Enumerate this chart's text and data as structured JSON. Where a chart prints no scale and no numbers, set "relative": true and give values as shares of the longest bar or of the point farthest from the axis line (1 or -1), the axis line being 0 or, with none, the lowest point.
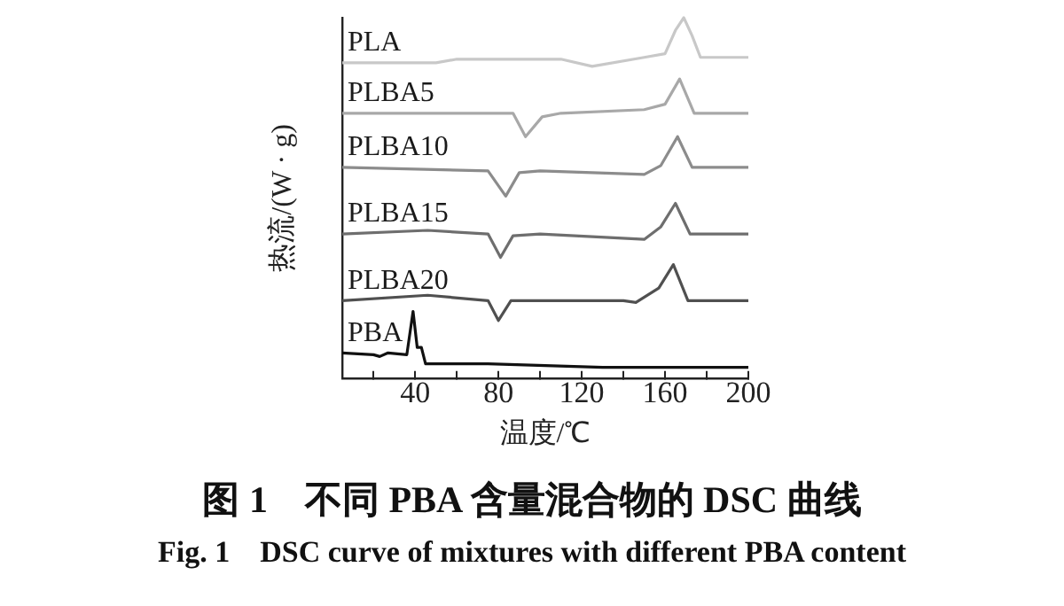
{
  "chart_data": {
    "type": "line",
    "relative": true,
    "title": "图 1　不同 PBA 含量混合物的 DSC 曲线",
    "subtitle": "Fig. 1　DSC curve of mixtures with different PBA content",
    "xlabel": "温度/℃",
    "ylabel": "热流/(W · g)",
    "xlim": [
      5,
      200
    ],
    "xticks": [
      {
        "value": 20,
        "label": null
      },
      40,
      {
        "value": 60,
        "label": null
      },
      80,
      {
        "value": 100,
        "label": null
      },
      120,
      {
        "value": 140,
        "label": null
      },
      160,
      {
        "value": 180,
        "label": null
      },
      200
    ],
    "grid": false,
    "legend": false,
    "marker": "none",
    "line_style": "solid",
    "series": [
      {
        "name": "PLA",
        "color": "#c8c8c8",
        "x": [
          5,
          50,
          60,
          110,
          125,
          150,
          160,
          165,
          169,
          173,
          177,
          200
        ],
        "values": [
          0.875,
          0.875,
          0.885,
          0.885,
          0.865,
          0.89,
          0.9,
          0.965,
          1.0,
          0.95,
          0.89,
          0.89
        ]
      },
      {
        "name": "PLBA5",
        "color": "#a8a8a8",
        "x": [
          5,
          87,
          93,
          101,
          110,
          150,
          160,
          167,
          174,
          200
        ],
        "values": [
          0.735,
          0.735,
          0.67,
          0.725,
          0.735,
          0.745,
          0.76,
          0.83,
          0.735,
          0.735
        ]
      },
      {
        "name": "PLBA10",
        "color": "#8c8c8c",
        "x": [
          5,
          75,
          83.5,
          90,
          100,
          150,
          158,
          166,
          173,
          200
        ],
        "values": [
          0.585,
          0.575,
          0.505,
          0.57,
          0.575,
          0.565,
          0.59,
          0.67,
          0.585,
          0.585
        ]
      },
      {
        "name": "PLBA15",
        "color": "#6e6e6e",
        "x": [
          5,
          46,
          75,
          81,
          87,
          100,
          150,
          158,
          165,
          172,
          200
        ],
        "values": [
          0.4,
          0.41,
          0.4,
          0.335,
          0.395,
          0.4,
          0.385,
          0.42,
          0.485,
          0.4,
          0.4
        ]
      },
      {
        "name": "PLBA20",
        "color": "#505050",
        "x": [
          5,
          46,
          75,
          80,
          86,
          100,
          140,
          146,
          157,
          164,
          171,
          200
        ],
        "values": [
          0.215,
          0.23,
          0.215,
          0.16,
          0.215,
          0.215,
          0.215,
          0.21,
          0.25,
          0.315,
          0.215,
          0.215
        ]
      },
      {
        "name": "PBA",
        "color": "#111111",
        "x": [
          5,
          20,
          23,
          27,
          36,
          39,
          41,
          43,
          45,
          75,
          130,
          200
        ],
        "values": [
          0.07,
          0.065,
          0.06,
          0.07,
          0.065,
          0.185,
          0.085,
          0.085,
          0.04,
          0.04,
          0.03,
          0.03
        ]
      }
    ]
  }
}
